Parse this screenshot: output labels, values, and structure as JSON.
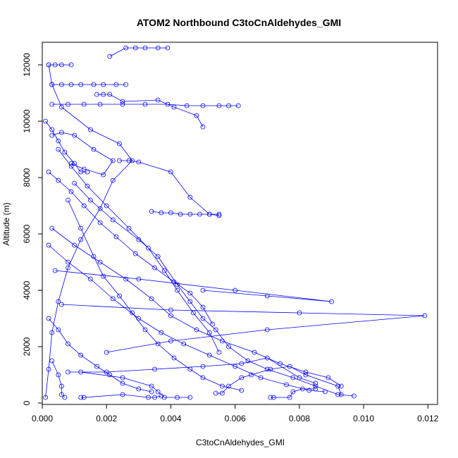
{
  "chart_data": {
    "type": "scatter",
    "mode": "lines+markers",
    "title": "ATOM2 Northbound C3toCnAldehydes_GMI",
    "xlabel": "C3toCnAldehydes_GMI",
    "ylabel": "Altitude (m)",
    "xlim": [
      0.0,
      0.0123
    ],
    "ylim": [
      -50,
      12800
    ],
    "xticks": [
      "0.000",
      "0.002",
      "0.004",
      "0.006",
      "0.008",
      "0.010",
      "0.012"
    ],
    "yticks": [
      "0",
      "2000",
      "4000",
      "6000",
      "8000",
      "10000",
      "12000"
    ],
    "grid": false,
    "color": "#0000ff",
    "series": [
      {
        "points": [
          [
            0.0001,
            200
          ],
          [
            0.0002,
            1200
          ],
          [
            0.0003,
            2500
          ],
          [
            0.0005,
            3600
          ],
          [
            0.0008,
            4800
          ],
          [
            0.0012,
            5800
          ],
          [
            0.0018,
            6900
          ],
          [
            0.0022,
            7900
          ],
          [
            0.0028,
            8600
          ],
          [
            0.0024,
            9200
          ],
          [
            0.0015,
            9700
          ],
          [
            0.0006,
            10500
          ],
          [
            0.0003,
            11300
          ],
          [
            0.0002,
            12000
          ]
        ]
      },
      {
        "points": [
          [
            0.0003,
            11300
          ],
          [
            0.0006,
            11300
          ],
          [
            0.0009,
            11300
          ],
          [
            0.0012,
            11300
          ],
          [
            0.0016,
            11300
          ],
          [
            0.0019,
            11300
          ],
          [
            0.0023,
            11300
          ],
          [
            0.0026,
            11300
          ]
        ]
      },
      {
        "points": [
          [
            0.0002,
            12000
          ],
          [
            0.0004,
            12000
          ],
          [
            0.0006,
            12000
          ],
          [
            0.0009,
            12000
          ]
        ]
      },
      {
        "points": [
          [
            0.0021,
            12300
          ],
          [
            0.0026,
            12600
          ],
          [
            0.0029,
            12600
          ],
          [
            0.0032,
            12600
          ],
          [
            0.0036,
            12600
          ],
          [
            0.0039,
            12600
          ]
        ]
      },
      {
        "points": [
          [
            0.0003,
            10600
          ],
          [
            0.0008,
            10600
          ],
          [
            0.0013,
            10600
          ],
          [
            0.0018,
            10600
          ],
          [
            0.0025,
            10600
          ],
          [
            0.0032,
            10600
          ],
          [
            0.0039,
            10600
          ],
          [
            0.0045,
            10550
          ],
          [
            0.005,
            10550
          ],
          [
            0.0055,
            10550
          ],
          [
            0.0058,
            10550
          ],
          [
            0.0061,
            10550
          ]
        ]
      },
      {
        "points": [
          [
            0.0017,
            10950
          ],
          [
            0.0019,
            10950
          ],
          [
            0.0021,
            10950
          ],
          [
            0.0025,
            10700
          ],
          [
            0.0036,
            10750
          ],
          [
            0.0041,
            10500
          ],
          [
            0.0048,
            10200
          ],
          [
            0.005,
            9800
          ]
        ]
      },
      {
        "points": [
          [
            0.0024,
            8600
          ],
          [
            0.0027,
            8600
          ],
          [
            0.003,
            8550
          ],
          [
            0.004,
            8200
          ],
          [
            0.0046,
            7300
          ],
          [
            0.0052,
            6700
          ],
          [
            0.0055,
            6650
          ]
        ]
      },
      {
        "points": [
          [
            0.0034,
            6800
          ],
          [
            0.0037,
            6750
          ],
          [
            0.004,
            6750
          ],
          [
            0.0043,
            6700
          ],
          [
            0.0046,
            6700
          ],
          [
            0.0049,
            6700
          ],
          [
            0.0052,
            6700
          ],
          [
            0.0055,
            6700
          ]
        ]
      },
      {
        "points": [
          [
            0.001,
            7800
          ],
          [
            0.0015,
            7200
          ],
          [
            0.0022,
            6500
          ],
          [
            0.003,
            5800
          ],
          [
            0.0036,
            5200
          ],
          [
            0.0042,
            4200
          ],
          [
            0.0046,
            3600
          ],
          [
            0.005,
            3000
          ],
          [
            0.0054,
            2600
          ],
          [
            0.0058,
            2000
          ],
          [
            0.0064,
            1500
          ],
          [
            0.007,
            1200
          ],
          [
            0.0078,
            900
          ],
          [
            0.0085,
            600
          ],
          [
            0.0092,
            300
          ],
          [
            0.0097,
            250
          ]
        ]
      },
      {
        "points": [
          [
            0.0004,
            4700
          ],
          [
            0.003,
            4400
          ],
          [
            0.006,
            4000
          ],
          [
            0.009,
            3600
          ],
          [
            0.007,
            3800
          ],
          [
            0.005,
            4000
          ]
        ]
      },
      {
        "points": [
          [
            0.0006,
            3500
          ],
          [
            0.004,
            3300
          ],
          [
            0.008,
            3200
          ],
          [
            0.0119,
            3100
          ],
          [
            0.007,
            2600
          ],
          [
            0.004,
            2200
          ],
          [
            0.002,
            1800
          ]
        ]
      },
      {
        "points": [
          [
            0.0012,
            1100
          ],
          [
            0.0025,
            900
          ],
          [
            0.0034,
            600
          ],
          [
            0.0036,
            400
          ],
          [
            0.0038,
            200
          ],
          [
            0.0042,
            200
          ],
          [
            0.0046,
            200
          ]
        ]
      },
      {
        "points": [
          [
            0.0008,
            1100
          ],
          [
            0.002,
            1100
          ],
          [
            0.0035,
            1200
          ],
          [
            0.005,
            1300
          ],
          [
            0.0062,
            1400
          ],
          [
            0.007,
            1600
          ],
          [
            0.008,
            900
          ],
          [
            0.0085,
            700
          ]
        ]
      },
      {
        "points": [
          [
            0.0002,
            5600
          ],
          [
            0.0008,
            5000
          ],
          [
            0.0015,
            4400
          ],
          [
            0.0022,
            3700
          ],
          [
            0.003,
            3000
          ],
          [
            0.0037,
            2500
          ],
          [
            0.0044,
            2100
          ],
          [
            0.0052,
            1700
          ],
          [
            0.006,
            1300
          ],
          [
            0.0068,
            900
          ],
          [
            0.0076,
            650
          ],
          [
            0.0083,
            450
          ],
          [
            0.0088,
            400
          ]
        ]
      },
      {
        "points": [
          [
            0.0003,
            6200
          ],
          [
            0.001,
            5600
          ],
          [
            0.0018,
            5000
          ],
          [
            0.0026,
            4400
          ],
          [
            0.0034,
            3700
          ],
          [
            0.004,
            3100
          ],
          [
            0.0048,
            2600
          ],
          [
            0.0056,
            2200
          ],
          [
            0.0066,
            1800
          ],
          [
            0.0074,
            1400
          ],
          [
            0.0082,
            1100
          ],
          [
            0.0089,
            900
          ],
          [
            0.0093,
            600
          ]
        ]
      },
      {
        "points": [
          [
            0.0012,
            200
          ],
          [
            0.0013,
            200
          ],
          [
            0.0025,
            300
          ],
          [
            0.0033,
            200
          ],
          [
            0.0035,
            200
          ],
          [
            0.0037,
            250
          ]
        ]
      },
      {
        "points": [
          [
            0.0054,
            350
          ],
          [
            0.0056,
            350
          ],
          [
            0.0058,
            600
          ],
          [
            0.0062,
            900
          ],
          [
            0.0065,
            1000
          ],
          [
            0.0071,
            1200
          ],
          [
            0.0077,
            1300
          ],
          [
            0.0082,
            1000
          ],
          [
            0.0092,
            600
          ],
          [
            0.0093,
            300
          ]
        ]
      },
      {
        "points": [
          [
            0.0071,
            200
          ],
          [
            0.0072,
            200
          ],
          [
            0.0077,
            200
          ],
          [
            0.0078,
            400
          ],
          [
            0.0081,
            500
          ],
          [
            0.0085,
            500
          ]
        ]
      },
      {
        "points": [
          [
            0.0008,
            7200
          ],
          [
            0.0012,
            6200
          ],
          [
            0.0016,
            5200
          ],
          [
            0.0019,
            4500
          ],
          [
            0.0024,
            3800
          ],
          [
            0.0028,
            3200
          ],
          [
            0.0032,
            2600
          ],
          [
            0.0036,
            2100
          ],
          [
            0.0041,
            1600
          ],
          [
            0.0046,
            1200
          ],
          [
            0.005,
            900
          ],
          [
            0.0056,
            600
          ],
          [
            0.0062,
            450
          ]
        ]
      },
      {
        "points": [
          [
            0.0005,
            9000
          ],
          [
            0.0009,
            8400
          ],
          [
            0.0014,
            7700
          ],
          [
            0.002,
            7000
          ],
          [
            0.0027,
            6200
          ],
          [
            0.0033,
            5500
          ],
          [
            0.0038,
            4700
          ],
          [
            0.0042,
            4000
          ],
          [
            0.0047,
            3200
          ],
          [
            0.0052,
            2500
          ],
          [
            0.0055,
            1800
          ]
        ]
      },
      {
        "points": [
          [
            0.0003,
            9500
          ],
          [
            0.0006,
            9600
          ],
          [
            0.001,
            9500
          ],
          [
            0.0016,
            9000
          ],
          [
            0.0022,
            8600
          ],
          [
            0.0019,
            8100
          ],
          [
            0.0013,
            8300
          ],
          [
            0.0009,
            8500
          ]
        ]
      },
      {
        "points": [
          [
            0.0002,
            8200
          ],
          [
            0.0005,
            7900
          ],
          [
            0.0009,
            7500
          ],
          [
            0.0013,
            7000
          ],
          [
            0.0018,
            6400
          ],
          [
            0.0023,
            5900
          ],
          [
            0.0029,
            5300
          ],
          [
            0.0035,
            4800
          ],
          [
            0.0041,
            4300
          ],
          [
            0.0046,
            3900
          ],
          [
            0.005,
            3400
          ],
          [
            0.0053,
            2800
          ]
        ]
      },
      {
        "points": [
          [
            0.0001,
            10000
          ],
          [
            0.0003,
            9700
          ],
          [
            0.0005,
            9300
          ],
          [
            0.0007,
            8900
          ],
          [
            0.001,
            8500
          ],
          [
            0.0012,
            8200
          ],
          [
            0.0014,
            8200
          ]
        ]
      },
      {
        "points": [
          [
            0.0002,
            3000
          ],
          [
            0.0005,
            2600
          ],
          [
            0.0008,
            2100
          ],
          [
            0.0012,
            1700
          ],
          [
            0.0017,
            1300
          ],
          [
            0.0021,
            1000
          ],
          [
            0.0025,
            700
          ],
          [
            0.003,
            500
          ],
          [
            0.0034,
            400
          ]
        ]
      },
      {
        "points": [
          [
            0.0003,
            1500
          ],
          [
            0.0005,
            1000
          ],
          [
            0.0006,
            600
          ],
          [
            0.0006,
            300
          ],
          [
            0.0007,
            200
          ]
        ]
      }
    ]
  }
}
